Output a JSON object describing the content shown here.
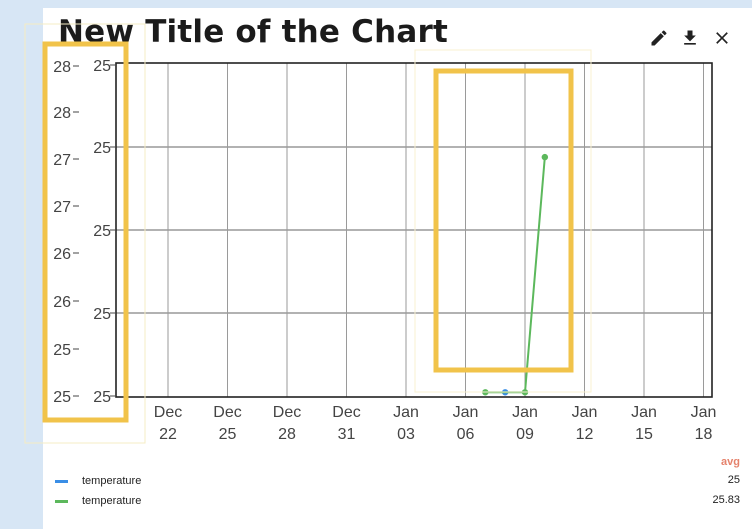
{
  "widget": {
    "title": "New Title of the Chart",
    "toolbar": [
      {
        "name": "edit-button",
        "icon": "pencil-icon"
      },
      {
        "name": "download-button",
        "icon": "download-icon"
      },
      {
        "name": "close-button",
        "icon": "close-icon"
      }
    ]
  },
  "chart_data": {
    "type": "line",
    "title": "New Title of the Chart",
    "xlabel": "",
    "ylabel": "",
    "grid": true,
    "legend_position": "bottom",
    "x_ticks": [
      [
        "Dec",
        "22"
      ],
      [
        "Dec",
        "25"
      ],
      [
        "Dec",
        "28"
      ],
      [
        "Dec",
        "31"
      ],
      [
        "Jan",
        "03"
      ],
      [
        "Jan",
        "06"
      ],
      [
        "Jan",
        "09"
      ],
      [
        "Jan",
        "12"
      ],
      [
        "Jan",
        "15"
      ],
      [
        "Jan",
        "18"
      ]
    ],
    "y_axis_left_ticks": [
      "28",
      "28",
      "27",
      "27",
      "26",
      "26",
      "25",
      "25"
    ],
    "y_axis_right_ticks": [
      "25",
      "25",
      "25",
      "25",
      "25"
    ],
    "series": [
      {
        "name": "temperature",
        "color": "#3a8ee6",
        "points": [
          {
            "x": "Jan 07",
            "y": 25
          }
        ]
      },
      {
        "name": "temperature",
        "color": "#5cb85c",
        "points": [
          {
            "x": "Jan 06",
            "y": 25.0
          },
          {
            "x": "Jan 08",
            "y": 25.0
          },
          {
            "x": "Jan 09",
            "y": 27.5
          }
        ]
      }
    ]
  },
  "legend": {
    "header": "avg",
    "rows": [
      {
        "label": "temperature",
        "color": "#3a8ee6",
        "value": "25"
      },
      {
        "label": "temperature",
        "color": "#5cb85c",
        "value": "25.83"
      }
    ]
  }
}
